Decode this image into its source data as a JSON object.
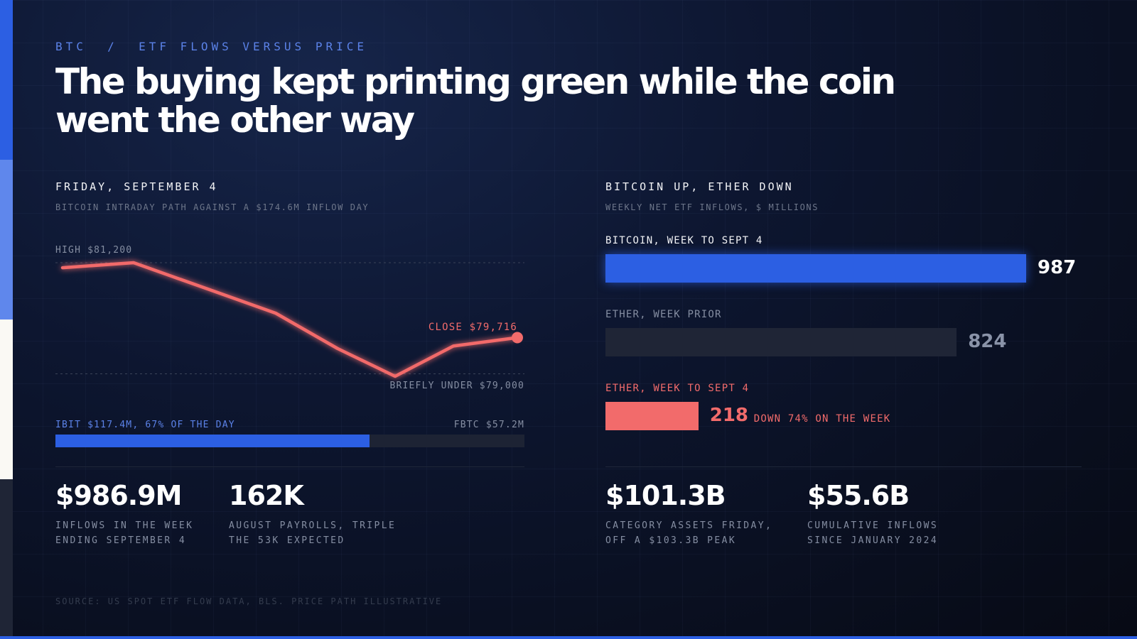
{
  "kicker": "BTC  /  ETF FLOWS VERSUS PRICE",
  "headline": "The buying kept printing green while the coin went the other way",
  "left": {
    "title": "FRIDAY, SEPTEMBER 4",
    "subtitle": "BITCOIN INTRADAY PATH AGAINST A $174.6M INFLOW DAY",
    "high_label": "HIGH $81,200",
    "close_label": "CLOSE $79,716",
    "low_label": "BRIEFLY UNDER $79,000",
    "split": {
      "ibit_label": "IBIT $117.4M, 67% OF THE DAY",
      "fbtc_label": "FBTC $57.2M",
      "ibit_share": 0.67
    },
    "stats": [
      {
        "value": "$986.9M",
        "caption": "INFLOWS IN THE WEEK\nENDING SEPTEMBER 4"
      },
      {
        "value": "162K",
        "caption": "AUGUST PAYROLLS, TRIPLE\nTHE 53K EXPECTED"
      }
    ]
  },
  "right": {
    "title": "BITCOIN UP, ETHER DOWN",
    "subtitle": "WEEKLY NET ETF INFLOWS, $ MILLIONS",
    "bars": [
      {
        "label": "BITCOIN, WEEK TO SEPT 4",
        "value": 987,
        "color": "#2c5fe3"
      },
      {
        "label": "ETHER, WEEK PRIOR",
        "value": 824,
        "color": "#1f2536"
      },
      {
        "label": "ETHER, WEEK TO SEPT 4",
        "value": 218,
        "color": "#f26b6b",
        "note": "DOWN 74% ON THE WEEK"
      }
    ],
    "stats": [
      {
        "value": "$101.3B",
        "caption": "CATEGORY ASSETS FRIDAY,\nOFF A $103.3B PEAK"
      },
      {
        "value": "$55.6B",
        "caption": "CUMULATIVE INFLOWS\nSINCE JANUARY 2024"
      }
    ]
  },
  "source": "SOURCE: US SPOT ETF FLOW DATA, BLS. PRICE PATH ILLUSTRATIVE",
  "chart_data": [
    {
      "type": "line",
      "title": "FRIDAY, SEPTEMBER 4",
      "subtitle": "BITCOIN INTRADAY PATH AGAINST A $174.6M INFLOW DAY",
      "series": [
        {
          "values": [
            81100,
            81200,
            80700,
            80200,
            79500,
            78950,
            79550,
            79716
          ]
        }
      ],
      "ylim": [
        78950,
        81200
      ],
      "reference_lines": [
        81200,
        79000
      ],
      "annotations": [
        "HIGH $81,200",
        "CLOSE $79,716",
        "BRIEFLY UNDER $79,000"
      ],
      "color": "#f26b6b"
    },
    {
      "type": "bar",
      "orientation": "horizontal",
      "title": "BITCOIN UP, ETHER DOWN",
      "subtitle": "WEEKLY NET ETF INFLOWS, $ MILLIONS",
      "categories": [
        "BITCOIN, WEEK TO SEPT 4",
        "ETHER, WEEK PRIOR",
        "ETHER, WEEK TO SEPT 4"
      ],
      "values": [
        987,
        824,
        218
      ],
      "xlim": [
        0,
        987
      ]
    }
  ]
}
